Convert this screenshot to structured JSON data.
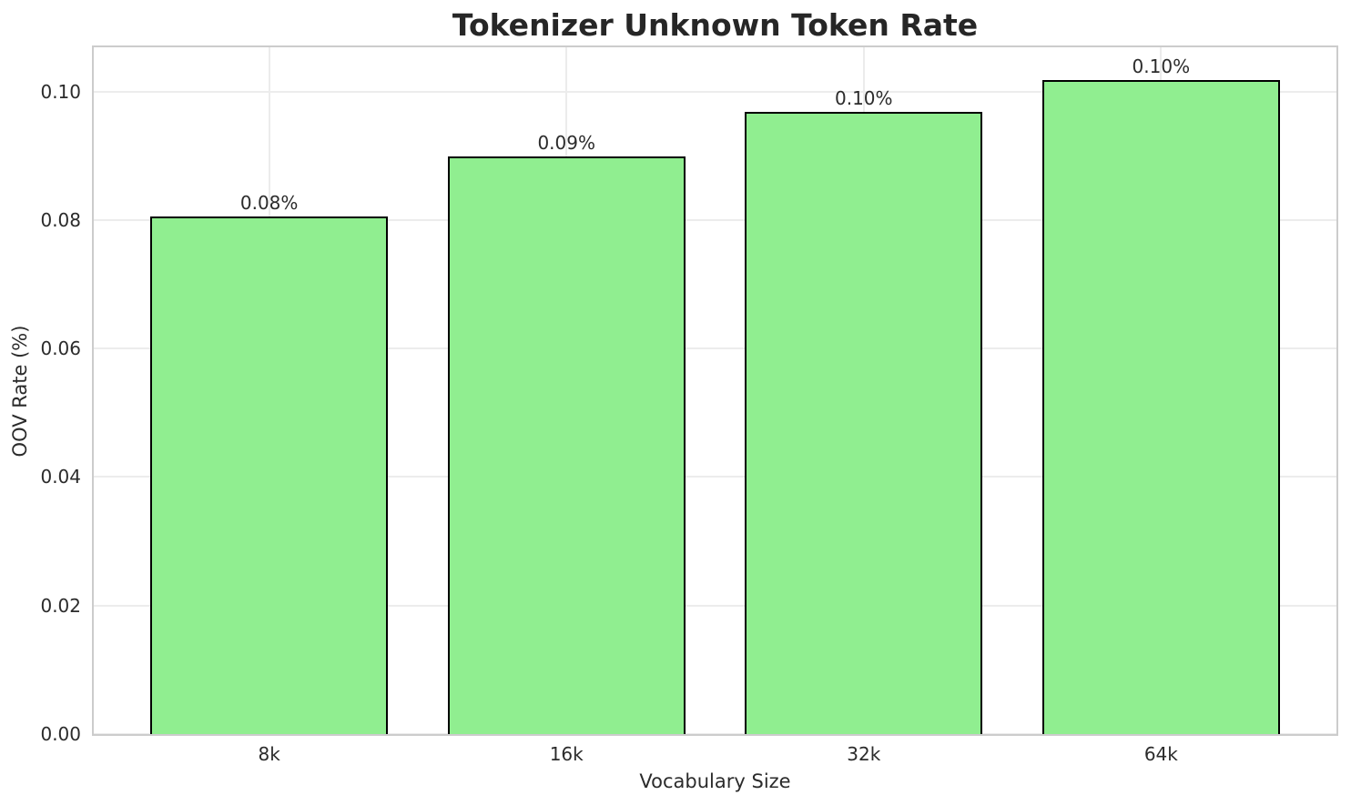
{
  "chart_data": {
    "type": "bar",
    "title": "Tokenizer Unknown Token Rate",
    "xlabel": "Vocabulary Size",
    "ylabel": "OOV Rate (%)",
    "categories": [
      "8k",
      "16k",
      "32k",
      "64k"
    ],
    "values": [
      0.0805,
      0.0899,
      0.0969,
      0.1018
    ],
    "bar_labels": [
      "0.08%",
      "0.09%",
      "0.10%",
      "0.10%"
    ],
    "yticks": [
      0.0,
      0.02,
      0.04,
      0.06,
      0.08,
      0.1
    ],
    "ytick_labels": [
      "0.00",
      "0.02",
      "0.04",
      "0.06",
      "0.08",
      "0.10"
    ],
    "ylim": [
      0,
      0.1069
    ],
    "xlim": [
      -0.59,
      3.59
    ],
    "bar_width": 0.8,
    "grid": true,
    "legend": null,
    "bar_color": "#90EE90",
    "bar_edge_color": "#000000",
    "grid_color": "#ececec",
    "spine_color": "#cccccc",
    "text_color": "#2b2b2b",
    "title_color": "#262626"
  }
}
